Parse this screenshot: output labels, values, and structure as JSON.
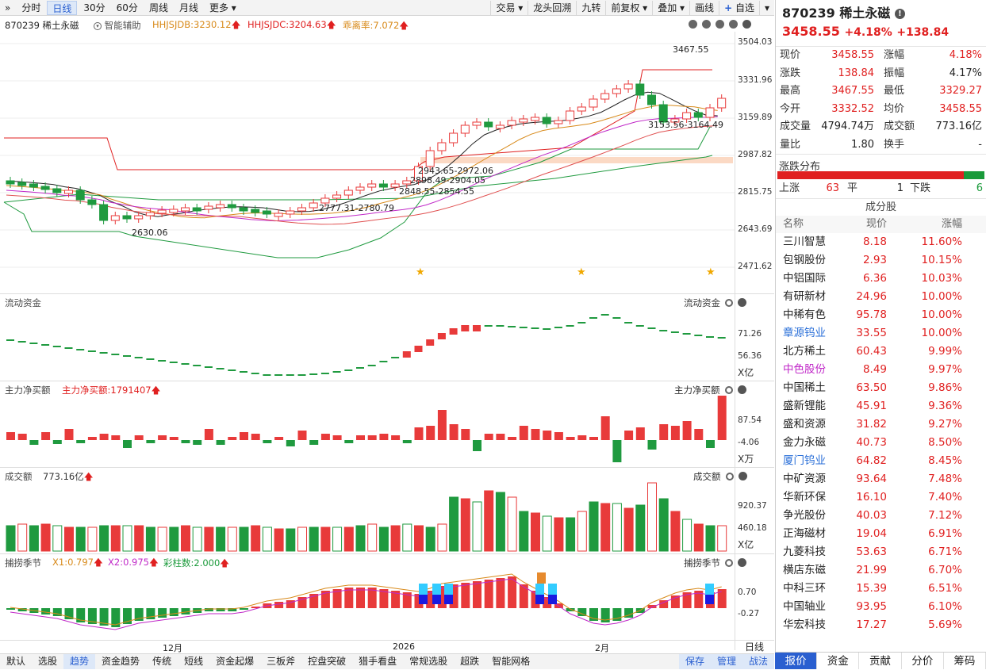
{
  "toolbar": {
    "collapse_glyph": "»",
    "periods": [
      "分时",
      "日线",
      "30分",
      "60分",
      "周线",
      "月线",
      "更多"
    ],
    "active_period": "日线",
    "right_tools": [
      "交易",
      "龙头回溯",
      "九转",
      "前复权",
      "叠加",
      "画线",
      "自选"
    ]
  },
  "stock_header": {
    "code_name": "870239 稀土永磁",
    "smart_assist": "智能辅助",
    "indicator1": "HHJSJDB:3230.12",
    "indicator2": "HHJSJDC:3204.63",
    "indicator3": "乖离率:7.072"
  },
  "main_chart": {
    "y_labels": [
      "3504.03",
      "3331.96",
      "3159.89",
      "2987.82",
      "2815.75",
      "2643.69",
      "2471.62"
    ],
    "annotations": [
      "3467.55",
      "3153.56-3164.49",
      "2943.65-2972.06",
      "2898.49-2904.05",
      "2848.55-2854.55",
      "2777.31-2780.79",
      "2630.06"
    ]
  },
  "panels": {
    "liudong": {
      "title": "流动资金",
      "y_labels": [
        "71.26",
        "56.36"
      ],
      "unit": "X亿"
    },
    "zhuli": {
      "title": "主力净买额",
      "value": "主力净买额:1791407",
      "y_labels": [
        "87.54",
        "-4.06"
      ],
      "unit": "X万"
    },
    "chengjiao": {
      "title": "成交额",
      "value": "773.16亿",
      "y_labels": [
        "920.37",
        "460.18"
      ],
      "unit": "X亿"
    },
    "bulao": {
      "title": "捕捞季节",
      "x1": "X1:0.797",
      "x2": "X2:0.975",
      "bar": "彩柱数:2.000",
      "y_labels": [
        "0.70",
        "-0.27"
      ]
    }
  },
  "time_axis": [
    "12月",
    "2026",
    "2月"
  ],
  "period_badge": "日线",
  "bottom_tabs": [
    "默认",
    "选股",
    "趋势",
    "资金趋势",
    "传统",
    "短线",
    "资金起爆",
    "三板斧",
    "控盘突破",
    "猎手看盘",
    "常规选股",
    "超跌",
    "智能网格"
  ],
  "bottom_active": "趋势",
  "bottom_right": [
    "保存",
    "管理",
    "战法"
  ],
  "quote": {
    "title": "870239 稀土永磁",
    "price": "3458.55",
    "pct": "+4.18%",
    "chg": "+138.84",
    "rows": [
      {
        "l1": "现价",
        "v1": "3458.55",
        "c1": "red",
        "l2": "涨幅",
        "v2": "4.18%",
        "c2": "red"
      },
      {
        "l1": "涨跌",
        "v1": "138.84",
        "c1": "red",
        "l2": "振幅",
        "v2": "4.17%",
        "c2": "black"
      },
      {
        "l1": "最高",
        "v1": "3467.55",
        "c1": "red",
        "l2": "最低",
        "v2": "3329.27",
        "c2": "red"
      },
      {
        "l1": "今开",
        "v1": "3332.52",
        "c1": "red",
        "l2": "均价",
        "v2": "3458.55",
        "c2": "red"
      },
      {
        "l1": "成交量",
        "v1": "4794.74万",
        "c1": "black",
        "l2": "成交额",
        "v2": "773.16亿",
        "c2": "black"
      },
      {
        "l1": "量比",
        "v1": "1.80",
        "c1": "black",
        "l2": "换手",
        "v2": "-",
        "c2": "black"
      }
    ],
    "dist_title": "涨跌分布",
    "up_label": "上涨",
    "up_count": "63",
    "flat_label": "平",
    "flat_count": "1",
    "down_label": "下跌",
    "down_count": "6",
    "up_fraction": 0.9
  },
  "constituents": {
    "title": "成分股",
    "headers": [
      "名称",
      "现价",
      "涨幅"
    ],
    "rows": [
      {
        "name": "三川智慧",
        "price": "8.18",
        "chg": "11.60%",
        "color": "black"
      },
      {
        "name": "包钢股份",
        "price": "2.93",
        "chg": "10.15%",
        "color": "black"
      },
      {
        "name": "中铝国际",
        "price": "6.36",
        "chg": "10.03%",
        "color": "black"
      },
      {
        "name": "有研新材",
        "price": "24.96",
        "chg": "10.00%",
        "color": "black"
      },
      {
        "name": "中稀有色",
        "price": "95.78",
        "chg": "10.00%",
        "color": "black"
      },
      {
        "name": "章源钨业",
        "price": "33.55",
        "chg": "10.00%",
        "color": "blue"
      },
      {
        "name": "北方稀土",
        "price": "60.43",
        "chg": "9.99%",
        "color": "black"
      },
      {
        "name": "中色股份",
        "price": "8.49",
        "chg": "9.97%",
        "color": "mag"
      },
      {
        "name": "中国稀土",
        "price": "63.50",
        "chg": "9.86%",
        "color": "black"
      },
      {
        "name": "盛新锂能",
        "price": "45.91",
        "chg": "9.36%",
        "color": "black"
      },
      {
        "name": "盛和资源",
        "price": "31.82",
        "chg": "9.27%",
        "color": "black"
      },
      {
        "name": "金力永磁",
        "price": "40.73",
        "chg": "8.50%",
        "color": "black"
      },
      {
        "name": "厦门钨业",
        "price": "64.82",
        "chg": "8.45%",
        "color": "blue"
      },
      {
        "name": "中矿资源",
        "price": "93.64",
        "chg": "7.48%",
        "color": "black"
      },
      {
        "name": "华新环保",
        "price": "16.10",
        "chg": "7.40%",
        "color": "black"
      },
      {
        "name": "争光股份",
        "price": "40.03",
        "chg": "7.12%",
        "color": "black"
      },
      {
        "name": "正海磁材",
        "price": "19.04",
        "chg": "6.91%",
        "color": "black"
      },
      {
        "name": "九菱科技",
        "price": "53.63",
        "chg": "6.71%",
        "color": "black"
      },
      {
        "name": "横店东磁",
        "price": "21.99",
        "chg": "6.70%",
        "color": "black"
      },
      {
        "name": "中科三环",
        "price": "15.39",
        "chg": "6.51%",
        "color": "black"
      },
      {
        "name": "中国轴业",
        "price": "93.95",
        "chg": "6.10%",
        "color": "black"
      },
      {
        "name": "华宏科技",
        "price": "17.27",
        "chg": "5.69%",
        "color": "black"
      }
    ]
  },
  "right_bottom_tabs": [
    "报价",
    "资金",
    "贡献",
    "分价",
    "筹码"
  ],
  "right_bottom_active": "报价",
  "colors": {
    "up": "#e83a3a",
    "down": "#1f9a3f",
    "accent": "#2a5fd0"
  }
}
